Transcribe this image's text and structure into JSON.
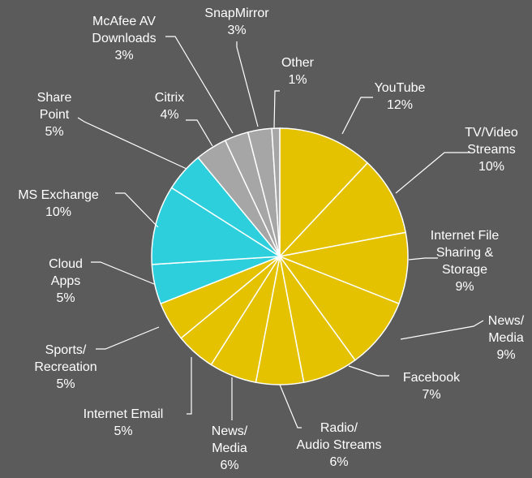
{
  "chart_data": {
    "type": "pie",
    "unit": "%",
    "slices": [
      {
        "label_lines": [
          "YouTube"
        ],
        "value": 12,
        "color": "#e4c200"
      },
      {
        "label_lines": [
          "TV/Video",
          "Streams"
        ],
        "value": 10,
        "color": "#e4c200"
      },
      {
        "label_lines": [
          "Internet File",
          "Sharing &",
          "Storage"
        ],
        "value": 9,
        "color": "#e4c200"
      },
      {
        "label_lines": [
          "News/",
          "Media"
        ],
        "value": 9,
        "color": "#e4c200"
      },
      {
        "label_lines": [
          "Facebook"
        ],
        "value": 7,
        "color": "#e4c200"
      },
      {
        "label_lines": [
          "Radio/",
          "Audio Streams"
        ],
        "value": 6,
        "color": "#e4c200"
      },
      {
        "label_lines": [
          "News/",
          "Media"
        ],
        "value": 6,
        "color": "#e4c200"
      },
      {
        "label_lines": [
          "Internet Email"
        ],
        "value": 5,
        "color": "#e4c200"
      },
      {
        "label_lines": [
          "Sports/",
          "Recreation"
        ],
        "value": 5,
        "color": "#e4c200"
      },
      {
        "label_lines": [
          "Cloud",
          "Apps"
        ],
        "value": 5,
        "color": "#2dcfdc"
      },
      {
        "label_lines": [
          "MS Exchange"
        ],
        "value": 10,
        "color": "#2dcfdc"
      },
      {
        "label_lines": [
          "Share",
          "Point"
        ],
        "value": 5,
        "color": "#2dcfdc"
      },
      {
        "label_lines": [
          "Citrix"
        ],
        "value": 4,
        "color": "#a6a6a6"
      },
      {
        "label_lines": [
          "McAfee AV",
          "Downloads"
        ],
        "value": 3,
        "color": "#a6a6a6"
      },
      {
        "label_lines": [
          "SnapMirror"
        ],
        "value": 3,
        "color": "#a6a6a6"
      },
      {
        "label_lines": [
          "Other"
        ],
        "value": 1,
        "color": "#a6a6a6"
      }
    ]
  }
}
